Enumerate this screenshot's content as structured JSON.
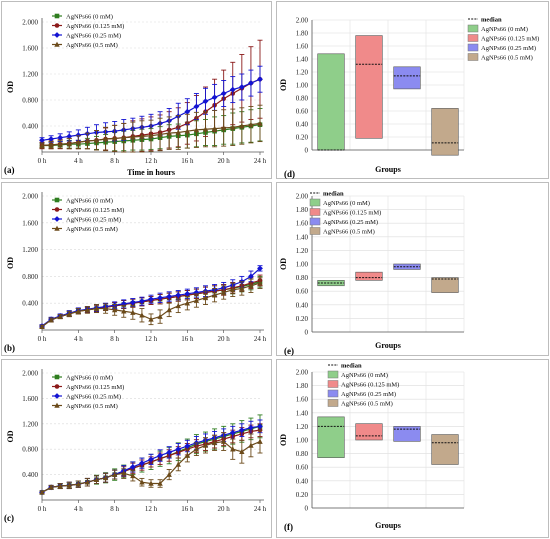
{
  "figure": {
    "colors": {
      "green": "#2e7d1f",
      "red": "#8b1a1a",
      "blue": "#1414d2",
      "brown": "#6b4a1a",
      "box_green": "#8fce8a",
      "box_red": "#f08a8a",
      "box_blue": "#8b8bf0",
      "box_brown": "#c2a98c"
    }
  },
  "chart_data": [
    {
      "id": "a",
      "panel_label": "(a)",
      "type": "line",
      "xlabel": "Time in hours",
      "ylabel": "OD",
      "xticks": [
        "0 h",
        "4 h",
        "8 h",
        "12 h",
        "16 h",
        "20 h",
        "24 h"
      ],
      "xlim": [
        0,
        24
      ],
      "yticks": [
        "0.400",
        "0.800",
        "1.200",
        "1.600",
        "2.000"
      ],
      "ylim": [
        0,
        2.0
      ],
      "legend": "top-left",
      "x": [
        0,
        1,
        2,
        3,
        4,
        5,
        6,
        7,
        8,
        9,
        10,
        11,
        12,
        13,
        14,
        15,
        16,
        17,
        18,
        19,
        20,
        21,
        22,
        23,
        24
      ],
      "series": [
        {
          "name": "AgNPs66 (0 mM)",
          "color_key": "green",
          "values": [
            0.1,
            0.1,
            0.11,
            0.12,
            0.12,
            0.13,
            0.14,
            0.15,
            0.16,
            0.17,
            0.18,
            0.19,
            0.2,
            0.22,
            0.24,
            0.25,
            0.26,
            0.28,
            0.3,
            0.32,
            0.34,
            0.36,
            0.38,
            0.4,
            0.42
          ],
          "err": [
            0.04,
            0.05,
            0.05,
            0.06,
            0.06,
            0.08,
            0.1,
            0.12,
            0.14,
            0.15,
            0.15,
            0.16,
            0.16,
            0.17,
            0.18,
            0.18,
            0.2,
            0.2,
            0.2,
            0.22,
            0.22,
            0.24,
            0.24,
            0.25,
            0.25
          ]
        },
        {
          "name": "AgNPs66 (0.125 mM)",
          "color_key": "red",
          "values": [
            0.1,
            0.11,
            0.12,
            0.13,
            0.15,
            0.17,
            0.18,
            0.2,
            0.21,
            0.22,
            0.24,
            0.26,
            0.28,
            0.3,
            0.34,
            0.38,
            0.44,
            0.52,
            0.62,
            0.72,
            0.82,
            0.9,
            0.98,
            1.06,
            1.12
          ],
          "err": [
            0.05,
            0.06,
            0.07,
            0.08,
            0.1,
            0.12,
            0.15,
            0.17,
            0.2,
            0.22,
            0.24,
            0.25,
            0.26,
            0.27,
            0.28,
            0.3,
            0.32,
            0.35,
            0.38,
            0.4,
            0.44,
            0.48,
            0.52,
            0.56,
            0.6
          ]
        },
        {
          "name": "AgNPs66 (0.25 mM)",
          "color_key": "blue",
          "values": [
            0.18,
            0.2,
            0.22,
            0.24,
            0.26,
            0.28,
            0.3,
            0.31,
            0.32,
            0.34,
            0.36,
            0.38,
            0.4,
            0.44,
            0.48,
            0.55,
            0.62,
            0.7,
            0.78,
            0.84,
            0.9,
            0.96,
            1.0,
            1.06,
            1.12
          ],
          "err": [
            0.04,
            0.05,
            0.06,
            0.07,
            0.08,
            0.1,
            0.12,
            0.14,
            0.15,
            0.16,
            0.16,
            0.17,
            0.18,
            0.18,
            0.19,
            0.2,
            0.2,
            0.2,
            0.2,
            0.2,
            0.2,
            0.2,
            0.2,
            0.2,
            0.2
          ]
        },
        {
          "name": "AgNPs66 (0.5 mM)",
          "color_key": "brown",
          "values": [
            0.1,
            0.11,
            0.12,
            0.13,
            0.15,
            0.17,
            0.18,
            0.2,
            0.21,
            0.22,
            0.23,
            0.24,
            0.25,
            0.27,
            0.29,
            0.3,
            0.32,
            0.34,
            0.35,
            0.36,
            0.37,
            0.38,
            0.4,
            0.42,
            0.44
          ],
          "err": [
            0.04,
            0.05,
            0.06,
            0.08,
            0.1,
            0.12,
            0.15,
            0.18,
            0.2,
            0.22,
            0.23,
            0.24,
            0.24,
            0.25,
            0.25,
            0.26,
            0.26,
            0.27,
            0.27,
            0.28,
            0.28,
            0.28,
            0.28,
            0.28,
            0.28
          ]
        }
      ]
    },
    {
      "id": "b",
      "panel_label": "(b)",
      "type": "line",
      "xlabel": "",
      "ylabel": "OD",
      "xticks": [
        "0 h",
        "4 h",
        "8 h",
        "12 h",
        "16 h",
        "20 h",
        "24 h"
      ],
      "xlim": [
        0,
        24
      ],
      "yticks": [
        "0.400",
        "0.800",
        "1.200",
        "1.600",
        "2.000"
      ],
      "ylim": [
        0,
        2.0
      ],
      "legend": "top-left",
      "x": [
        0,
        1,
        2,
        3,
        4,
        5,
        6,
        7,
        8,
        9,
        10,
        11,
        12,
        13,
        14,
        15,
        16,
        17,
        18,
        19,
        20,
        21,
        22,
        23,
        24
      ],
      "series": [
        {
          "name": "AgNPs66 (0 mM)",
          "color_key": "green",
          "values": [
            0.05,
            0.15,
            0.2,
            0.24,
            0.28,
            0.3,
            0.32,
            0.34,
            0.36,
            0.38,
            0.4,
            0.42,
            0.44,
            0.46,
            0.48,
            0.5,
            0.52,
            0.54,
            0.56,
            0.58,
            0.6,
            0.62,
            0.65,
            0.68,
            0.72
          ],
          "err": [
            0.02,
            0.03,
            0.03,
            0.04,
            0.04,
            0.04,
            0.05,
            0.05,
            0.05,
            0.06,
            0.06,
            0.06,
            0.06,
            0.07,
            0.07,
            0.07,
            0.07,
            0.07,
            0.08,
            0.08,
            0.08,
            0.08,
            0.08,
            0.08,
            0.08
          ]
        },
        {
          "name": "AgNPs66 (0.125 mM)",
          "color_key": "red",
          "values": [
            0.05,
            0.15,
            0.2,
            0.24,
            0.28,
            0.3,
            0.32,
            0.34,
            0.36,
            0.38,
            0.4,
            0.42,
            0.44,
            0.46,
            0.48,
            0.5,
            0.52,
            0.54,
            0.56,
            0.58,
            0.6,
            0.63,
            0.66,
            0.7,
            0.74
          ],
          "err": [
            0.02,
            0.03,
            0.03,
            0.04,
            0.04,
            0.04,
            0.05,
            0.05,
            0.05,
            0.06,
            0.06,
            0.06,
            0.06,
            0.07,
            0.07,
            0.07,
            0.07,
            0.07,
            0.08,
            0.08,
            0.08,
            0.08,
            0.08,
            0.08,
            0.08
          ]
        },
        {
          "name": "AgNPs66 (0.25 mM)",
          "color_key": "blue",
          "values": [
            0.06,
            0.16,
            0.21,
            0.25,
            0.29,
            0.31,
            0.33,
            0.35,
            0.37,
            0.39,
            0.41,
            0.43,
            0.46,
            0.48,
            0.5,
            0.52,
            0.54,
            0.56,
            0.58,
            0.6,
            0.63,
            0.67,
            0.72,
            0.8,
            0.92
          ],
          "err": [
            0.02,
            0.03,
            0.03,
            0.04,
            0.04,
            0.04,
            0.05,
            0.05,
            0.05,
            0.06,
            0.06,
            0.06,
            0.06,
            0.07,
            0.07,
            0.07,
            0.07,
            0.07,
            0.08,
            0.08,
            0.08,
            0.08,
            0.08,
            0.08,
            0.04
          ]
        },
        {
          "name": "AgNPs66 (0.5 mM)",
          "color_key": "brown",
          "values": [
            0.05,
            0.15,
            0.2,
            0.24,
            0.28,
            0.3,
            0.32,
            0.32,
            0.3,
            0.28,
            0.26,
            0.22,
            0.16,
            0.2,
            0.3,
            0.36,
            0.4,
            0.44,
            0.48,
            0.52,
            0.56,
            0.6,
            0.62,
            0.66,
            0.7
          ],
          "err": [
            0.02,
            0.03,
            0.03,
            0.04,
            0.04,
            0.05,
            0.06,
            0.07,
            0.08,
            0.09,
            0.1,
            0.1,
            0.08,
            0.1,
            0.1,
            0.1,
            0.1,
            0.1,
            0.1,
            0.1,
            0.1,
            0.1,
            0.1,
            0.1,
            0.08
          ]
        }
      ]
    },
    {
      "id": "c",
      "panel_label": "(c)",
      "type": "line",
      "xlabel": "",
      "ylabel": "OD",
      "xticks": [
        "0 h",
        "4 h",
        "8 h",
        "12 h",
        "16 h",
        "20 h",
        "24 h"
      ],
      "xlim": [
        0,
        24
      ],
      "yticks": [
        "0.400",
        "0.800",
        "1.200",
        "1.600",
        "2.000"
      ],
      "ylim": [
        0,
        2.0
      ],
      "legend": "top-left",
      "x": [
        0,
        1,
        2,
        3,
        4,
        5,
        6,
        7,
        8,
        9,
        10,
        11,
        12,
        13,
        14,
        15,
        16,
        17,
        18,
        19,
        20,
        21,
        22,
        23,
        24
      ],
      "series": [
        {
          "name": "AgNPs66 (0 mM)",
          "color_key": "green",
          "values": [
            0.12,
            0.2,
            0.22,
            0.23,
            0.25,
            0.28,
            0.32,
            0.35,
            0.4,
            0.45,
            0.5,
            0.55,
            0.6,
            0.65,
            0.7,
            0.76,
            0.82,
            0.88,
            0.92,
            0.96,
            1.0,
            1.04,
            1.08,
            1.12,
            1.16
          ],
          "err": [
            0.02,
            0.03,
            0.04,
            0.05,
            0.05,
            0.06,
            0.07,
            0.08,
            0.09,
            0.1,
            0.1,
            0.11,
            0.12,
            0.12,
            0.13,
            0.14,
            0.14,
            0.15,
            0.15,
            0.16,
            0.16,
            0.16,
            0.17,
            0.17,
            0.18
          ]
        },
        {
          "name": "AgNPs66 (0.125 mM)",
          "color_key": "red",
          "values": [
            0.12,
            0.2,
            0.22,
            0.23,
            0.25,
            0.28,
            0.32,
            0.35,
            0.4,
            0.45,
            0.5,
            0.55,
            0.6,
            0.65,
            0.7,
            0.75,
            0.8,
            0.85,
            0.88,
            0.92,
            0.96,
            1.0,
            1.04,
            1.08,
            1.1
          ],
          "err": [
            0.02,
            0.03,
            0.04,
            0.05,
            0.05,
            0.06,
            0.06,
            0.07,
            0.07,
            0.08,
            0.08,
            0.08,
            0.08,
            0.09,
            0.09,
            0.09,
            0.09,
            0.1,
            0.1,
            0.1,
            0.1,
            0.1,
            0.1,
            0.1,
            0.1
          ]
        },
        {
          "name": "AgNPs66 (0.25 mM)",
          "color_key": "blue",
          "values": [
            0.12,
            0.2,
            0.22,
            0.23,
            0.25,
            0.28,
            0.32,
            0.35,
            0.4,
            0.46,
            0.52,
            0.58,
            0.64,
            0.7,
            0.75,
            0.8,
            0.85,
            0.9,
            0.94,
            0.98,
            1.02,
            1.06,
            1.1,
            1.14,
            1.16
          ],
          "err": [
            0.02,
            0.03,
            0.04,
            0.05,
            0.05,
            0.06,
            0.06,
            0.07,
            0.07,
            0.08,
            0.08,
            0.08,
            0.08,
            0.09,
            0.09,
            0.09,
            0.09,
            0.1,
            0.1,
            0.1,
            0.1,
            0.1,
            0.1,
            0.1,
            0.1
          ]
        },
        {
          "name": "AgNPs66 (0.5 mM)",
          "color_key": "brown",
          "values": [
            0.12,
            0.2,
            0.22,
            0.23,
            0.25,
            0.28,
            0.32,
            0.35,
            0.4,
            0.42,
            0.38,
            0.28,
            0.26,
            0.26,
            0.4,
            0.56,
            0.7,
            0.8,
            0.86,
            0.9,
            0.92,
            0.8,
            0.76,
            0.86,
            0.92
          ],
          "err": [
            0.02,
            0.03,
            0.04,
            0.05,
            0.05,
            0.06,
            0.06,
            0.07,
            0.07,
            0.08,
            0.08,
            0.06,
            0.06,
            0.06,
            0.08,
            0.1,
            0.1,
            0.1,
            0.12,
            0.12,
            0.14,
            0.16,
            0.18,
            0.18,
            0.18
          ]
        }
      ]
    },
    {
      "id": "d",
      "panel_label": "(d)",
      "type": "bar",
      "xlabel": "Groups",
      "ylabel": "OD",
      "yticks": [
        "0",
        "0.20",
        "0.40",
        "0.60",
        "0.80",
        "1.00",
        "1.20",
        "1.40",
        "1.60",
        "1.80",
        "2.00"
      ],
      "ylim": [
        0,
        2.0
      ],
      "legend": "top-right",
      "median_label": "median",
      "series": [
        {
          "name": "AgNPs66 (0 mM)",
          "color_key": "box_green",
          "low": 0.0,
          "high": 1.48,
          "median": 0.0
        },
        {
          "name": "AgNPs66 (0.125 mM)",
          "color_key": "box_red",
          "low": 0.18,
          "high": 1.76,
          "median": 1.32
        },
        {
          "name": "AgNPs66 (0.25 mM)",
          "color_key": "box_blue",
          "low": 0.94,
          "high": 1.28,
          "median": 1.14
        },
        {
          "name": "AgNPs66 (0.5 mM)",
          "color_key": "box_brown",
          "low": -0.08,
          "high": 0.64,
          "median": 0.11
        }
      ]
    },
    {
      "id": "e",
      "panel_label": "(e)",
      "type": "bar",
      "xlabel": "Groups",
      "ylabel": "OD",
      "yticks": [
        "0",
        "0.20",
        "0.40",
        "0.60",
        "0.80",
        "1.00",
        "1.20",
        "1.40",
        "1.60",
        "1.80",
        "2.00"
      ],
      "ylim": [
        0,
        2.0
      ],
      "legend": "top-left",
      "median_label": "median",
      "series": [
        {
          "name": "AgNPs66 (0 mM)",
          "color_key": "box_green",
          "low": 0.68,
          "high": 0.76,
          "median": 0.72
        },
        {
          "name": "AgNPs66 (0.125 mM)",
          "color_key": "box_red",
          "low": 0.76,
          "high": 0.88,
          "median": 0.8
        },
        {
          "name": "AgNPs66 (0.25 mM)",
          "color_key": "box_blue",
          "low": 0.92,
          "high": 1.0,
          "median": 0.96
        },
        {
          "name": "AgNPs66 (0.5 mM)",
          "color_key": "box_brown",
          "low": 0.58,
          "high": 0.8,
          "median": 0.78
        }
      ]
    },
    {
      "id": "f",
      "panel_label": "(f)",
      "type": "bar",
      "xlabel": "Groups",
      "ylabel": "OD",
      "yticks": [
        "0",
        "0.20",
        "0.40",
        "0.60",
        "0.80",
        "1.00",
        "1.20",
        "1.40",
        "1.60",
        "1.80",
        "2.00"
      ],
      "ylim": [
        0,
        2.0
      ],
      "legend": "top-left",
      "median_label": "median",
      "series": [
        {
          "name": "AgNPs66 (0 mM)",
          "color_key": "box_green",
          "low": 0.74,
          "high": 1.34,
          "median": 1.2
        },
        {
          "name": "AgNPs66 (0.125 mM)",
          "color_key": "box_red",
          "low": 1.0,
          "high": 1.24,
          "median": 1.06
        },
        {
          "name": "AgNPs66 (0.25 mM)",
          "color_key": "box_blue",
          "low": 0.98,
          "high": 1.2,
          "median": 1.16
        },
        {
          "name": "AgNPs66 (0.5 mM)",
          "color_key": "box_brown",
          "low": 0.64,
          "high": 1.08,
          "median": 0.96
        }
      ]
    }
  ]
}
